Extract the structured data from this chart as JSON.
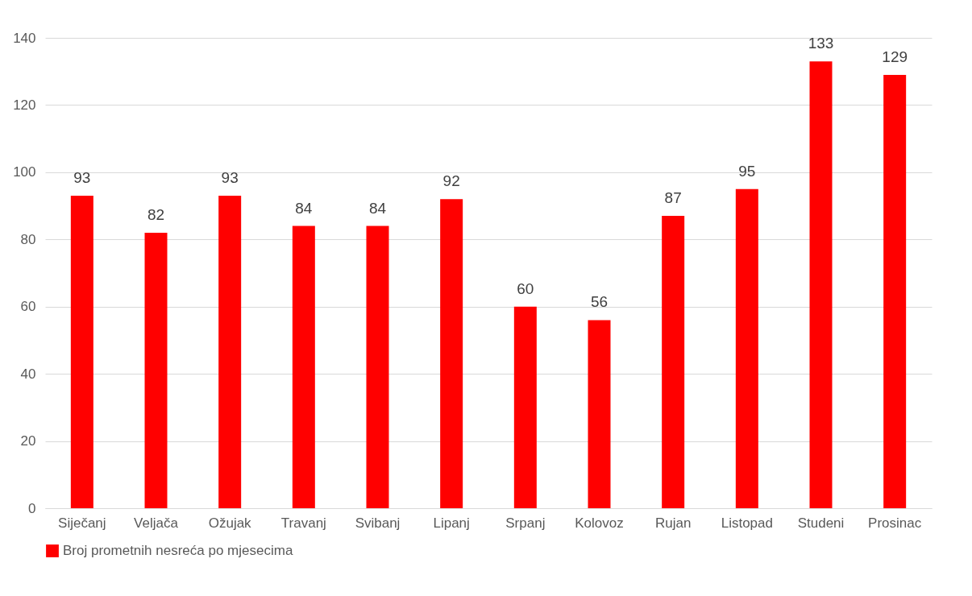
{
  "chart_data": {
    "type": "bar",
    "categories": [
      "Siječanj",
      "Veljača",
      "Ožujak",
      "Travanj",
      "Svibanj",
      "Lipanj",
      "Srpanj",
      "Kolovoz",
      "Rujan",
      "Listopad",
      "Studeni",
      "Prosinac"
    ],
    "series": [
      {
        "name": "Broj prometnih nesreća po mjesecima",
        "color": "#ff0000",
        "values": [
          93,
          82,
          93,
          84,
          84,
          92,
          60,
          56,
          87,
          95,
          133,
          129
        ]
      }
    ],
    "ylim": [
      0,
      140
    ],
    "yticks": [
      0,
      20,
      40,
      60,
      80,
      100,
      120,
      140
    ],
    "grid": "y",
    "data_labels": true,
    "legend": "bottom"
  }
}
